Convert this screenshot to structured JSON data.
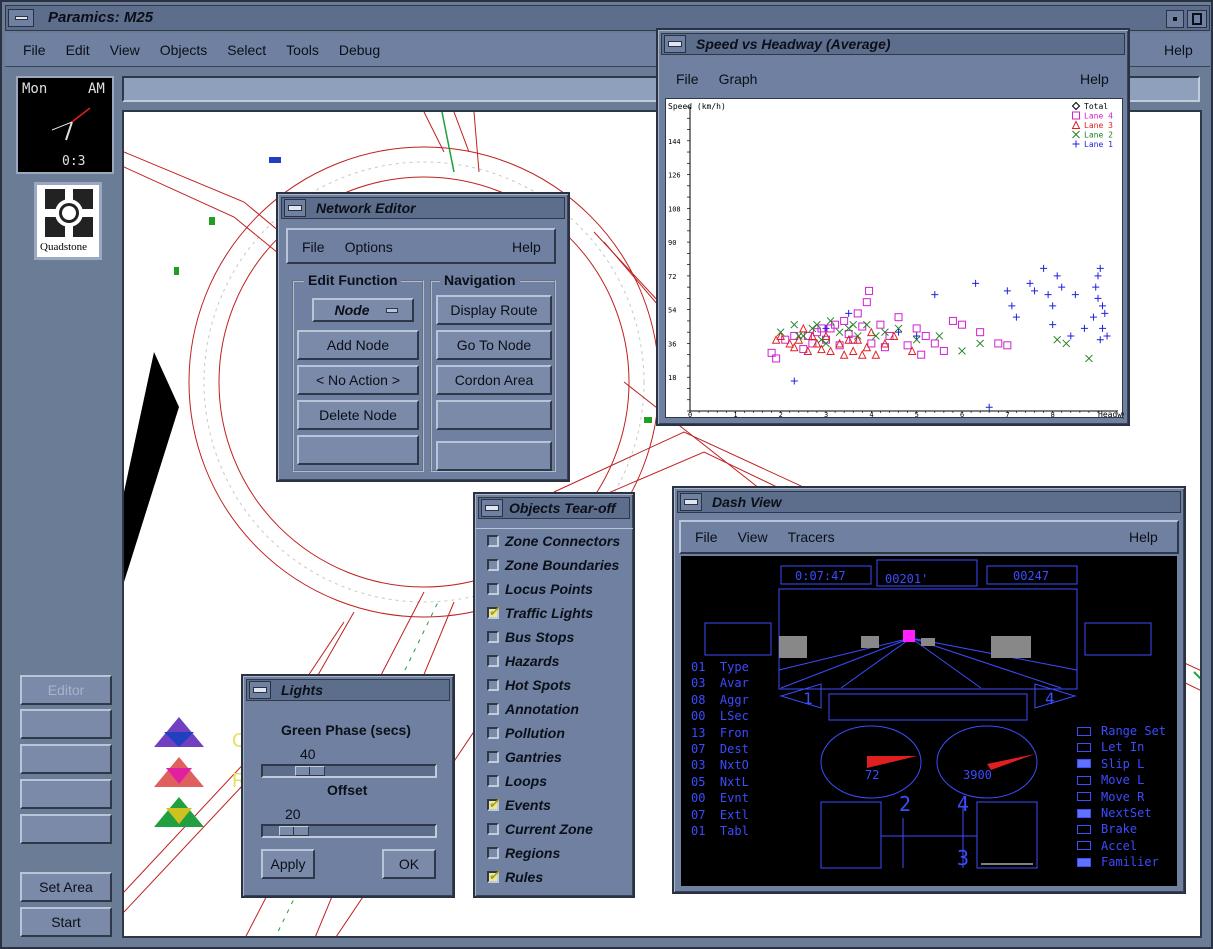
{
  "main": {
    "title": "Paramics: M25",
    "menu": [
      "File",
      "Edit",
      "View",
      "Objects",
      "Select",
      "Tools",
      "Debug"
    ],
    "help": "Help",
    "clock": {
      "day": "Mon",
      "period": "AM",
      "time": "0:3"
    },
    "logo": "Quadstone",
    "side_buttons": [
      "Editor",
      "",
      "",
      "",
      ""
    ],
    "set_area": "Set Area",
    "start": "Start"
  },
  "chart_window": {
    "title": "Speed vs Headway (Average)",
    "menu": [
      "File",
      "Graph"
    ],
    "help": "Help"
  },
  "chart_data": {
    "type": "scatter",
    "ylabel": "Speed (km/h)",
    "xlabel": "Headwy",
    "xlim": [
      0,
      9
    ],
    "ylim": [
      0,
      162
    ],
    "xticks": [
      "0",
      "1",
      "2",
      "3",
      "4",
      "5",
      "6",
      "7",
      "8"
    ],
    "yticks": [
      "18",
      "36",
      "54",
      "72",
      "90",
      "108",
      "126",
      "144"
    ],
    "series": [
      {
        "name": "Total",
        "marker": "diamond",
        "color": "#000000",
        "points": []
      },
      {
        "name": "Lane 4",
        "marker": "square",
        "color": "#d020d0",
        "points": [
          [
            1.8,
            31
          ],
          [
            1.9,
            28
          ],
          [
            2.1,
            38
          ],
          [
            2.3,
            40
          ],
          [
            2.5,
            33
          ],
          [
            2.6,
            40
          ],
          [
            2.8,
            42
          ],
          [
            3.0,
            38
          ],
          [
            3.1,
            44
          ],
          [
            3.3,
            35
          ],
          [
            3.5,
            41
          ],
          [
            3.6,
            38
          ],
          [
            3.8,
            45
          ],
          [
            3.9,
            58
          ],
          [
            4.0,
            36
          ],
          [
            4.2,
            46
          ],
          [
            4.4,
            40
          ],
          [
            4.6,
            50
          ],
          [
            4.8,
            35
          ],
          [
            5.0,
            44
          ],
          [
            5.2,
            40
          ],
          [
            5.4,
            36
          ],
          [
            5.6,
            32
          ],
          [
            5.8,
            48
          ],
          [
            6.0,
            46
          ],
          [
            6.4,
            42
          ],
          [
            6.8,
            36
          ],
          [
            7.0,
            35
          ],
          [
            3.2,
            46
          ],
          [
            3.7,
            52
          ],
          [
            3.4,
            48
          ],
          [
            2.9,
            44
          ],
          [
            5.1,
            30
          ],
          [
            4.3,
            34
          ],
          [
            2.7,
            36
          ],
          [
            3.95,
            64
          ]
        ]
      },
      {
        "name": "Lane 3",
        "marker": "triangle",
        "color": "#e02020",
        "points": [
          [
            1.9,
            38
          ],
          [
            2.0,
            40
          ],
          [
            2.2,
            36
          ],
          [
            2.4,
            38
          ],
          [
            2.5,
            44
          ],
          [
            2.7,
            40
          ],
          [
            2.8,
            36
          ],
          [
            3.0,
            40
          ],
          [
            3.1,
            32
          ],
          [
            3.3,
            36
          ],
          [
            3.4,
            30
          ],
          [
            3.6,
            32
          ],
          [
            3.7,
            38
          ],
          [
            3.9,
            34
          ],
          [
            4.1,
            30
          ],
          [
            4.3,
            36
          ],
          [
            4.5,
            40
          ],
          [
            4.9,
            32
          ],
          [
            2.3,
            34
          ],
          [
            2.6,
            32
          ],
          [
            3.5,
            38
          ],
          [
            3.8,
            30
          ],
          [
            4.0,
            42
          ],
          [
            2.9,
            33
          ]
        ]
      },
      {
        "name": "Lane 2",
        "marker": "x",
        "color": "#208020",
        "points": [
          [
            2.0,
            42
          ],
          [
            2.3,
            46
          ],
          [
            2.5,
            40
          ],
          [
            2.7,
            44
          ],
          [
            2.9,
            38
          ],
          [
            3.1,
            48
          ],
          [
            3.3,
            42
          ],
          [
            3.5,
            44
          ],
          [
            3.7,
            40
          ],
          [
            3.9,
            46
          ],
          [
            4.1,
            40
          ],
          [
            4.3,
            42
          ],
          [
            4.6,
            44
          ],
          [
            5.0,
            38
          ],
          [
            5.5,
            40
          ],
          [
            6.4,
            36
          ],
          [
            8.1,
            38
          ],
          [
            8.3,
            36
          ],
          [
            8.8,
            28
          ],
          [
            2.4,
            40
          ],
          [
            3.0,
            36
          ],
          [
            3.6,
            46
          ],
          [
            2.8,
            46
          ],
          [
            6.0,
            32
          ]
        ]
      },
      {
        "name": "Lane 1",
        "marker": "plus",
        "color": "#2020e0",
        "points": [
          [
            2.3,
            16
          ],
          [
            3.0,
            44
          ],
          [
            3.5,
            52
          ],
          [
            4.6,
            42
          ],
          [
            5.0,
            40
          ],
          [
            5.4,
            62
          ],
          [
            6.3,
            68
          ],
          [
            6.6,
            2
          ],
          [
            7.0,
            64
          ],
          [
            7.1,
            56
          ],
          [
            7.2,
            50
          ],
          [
            7.5,
            68
          ],
          [
            7.8,
            76
          ],
          [
            7.9,
            62
          ],
          [
            8.0,
            46
          ],
          [
            8.1,
            72
          ],
          [
            8.2,
            66
          ],
          [
            8.4,
            40
          ],
          [
            8.5,
            62
          ],
          [
            8.7,
            44
          ],
          [
            8.9,
            50
          ],
          [
            9.0,
            60
          ],
          [
            9.1,
            44
          ],
          [
            9.2,
            40
          ],
          [
            9.0,
            72
          ],
          [
            9.05,
            76
          ],
          [
            9.1,
            56
          ],
          [
            9.05,
            38
          ],
          [
            8.95,
            66
          ],
          [
            9.15,
            52
          ],
          [
            8.0,
            56
          ],
          [
            7.6,
            64
          ]
        ]
      }
    ]
  },
  "network_editor": {
    "title": "Network Editor",
    "menu": [
      "File",
      "Options"
    ],
    "help": "Help",
    "edit_function_label": "Edit Function",
    "navigation_label": "Navigation",
    "edit_buttons": [
      "Node",
      "Add Node",
      "< No Action >",
      "Delete Node",
      ""
    ],
    "nav_buttons": [
      "Display Route",
      "Go To Node",
      "Cordon Area",
      "",
      ""
    ]
  },
  "objects_tearoff": {
    "title": "Objects Tear-off",
    "items": [
      {
        "label": "Zone Connectors",
        "checked": false
      },
      {
        "label": "Zone Boundaries",
        "checked": false
      },
      {
        "label": "Locus Points",
        "checked": false
      },
      {
        "label": "Traffic Lights",
        "checked": true
      },
      {
        "label": "Bus Stops",
        "checked": false
      },
      {
        "label": "Hazards",
        "checked": false
      },
      {
        "label": "Hot Spots",
        "checked": false
      },
      {
        "label": "Annotation",
        "checked": false
      },
      {
        "label": "Pollution",
        "checked": false
      },
      {
        "label": "Gantries",
        "checked": false
      },
      {
        "label": "Loops",
        "checked": false
      },
      {
        "label": "Events",
        "checked": true
      },
      {
        "label": "Current Zone",
        "checked": false
      },
      {
        "label": "Regions",
        "checked": false
      },
      {
        "label": "Rules",
        "checked": true
      }
    ]
  },
  "lights": {
    "title": "Lights",
    "green_phase_label": "Green Phase (secs)",
    "green_phase_value": "40",
    "offset_label": "Offset",
    "offset_value": "20",
    "apply": "Apply",
    "ok": "OK"
  },
  "dash": {
    "title": "Dash View",
    "menu": [
      "File",
      "View",
      "Tracers"
    ],
    "help": "Help",
    "top_values": [
      "0:07:47",
      "00201'",
      "00247"
    ],
    "left_list": [
      "01  Type",
      "03  Avar",
      "08  Aggr",
      "00  LSec",
      "13  Fron",
      "07  Dest",
      "03  NxtO",
      "05  NxtL",
      "00  Evnt",
      "07  Extl",
      "01  Tabl"
    ],
    "lane_left": "1",
    "lane_right": "4",
    "speed": "72",
    "rpm": "3900",
    "gear_left": "2",
    "gear_right": "4",
    "gear_bottom": "3",
    "right_list": [
      {
        "label": "Range Set",
        "on": false
      },
      {
        "label": "Let In",
        "on": false
      },
      {
        "label": "Slip L",
        "on": true
      },
      {
        "label": "Move L",
        "on": false
      },
      {
        "label": "Move R",
        "on": false
      },
      {
        "label": "NextSet",
        "on": true
      },
      {
        "label": "Brake",
        "on": false
      },
      {
        "label": "Accel",
        "on": false
      },
      {
        "label": "Familier",
        "on": true
      }
    ]
  }
}
